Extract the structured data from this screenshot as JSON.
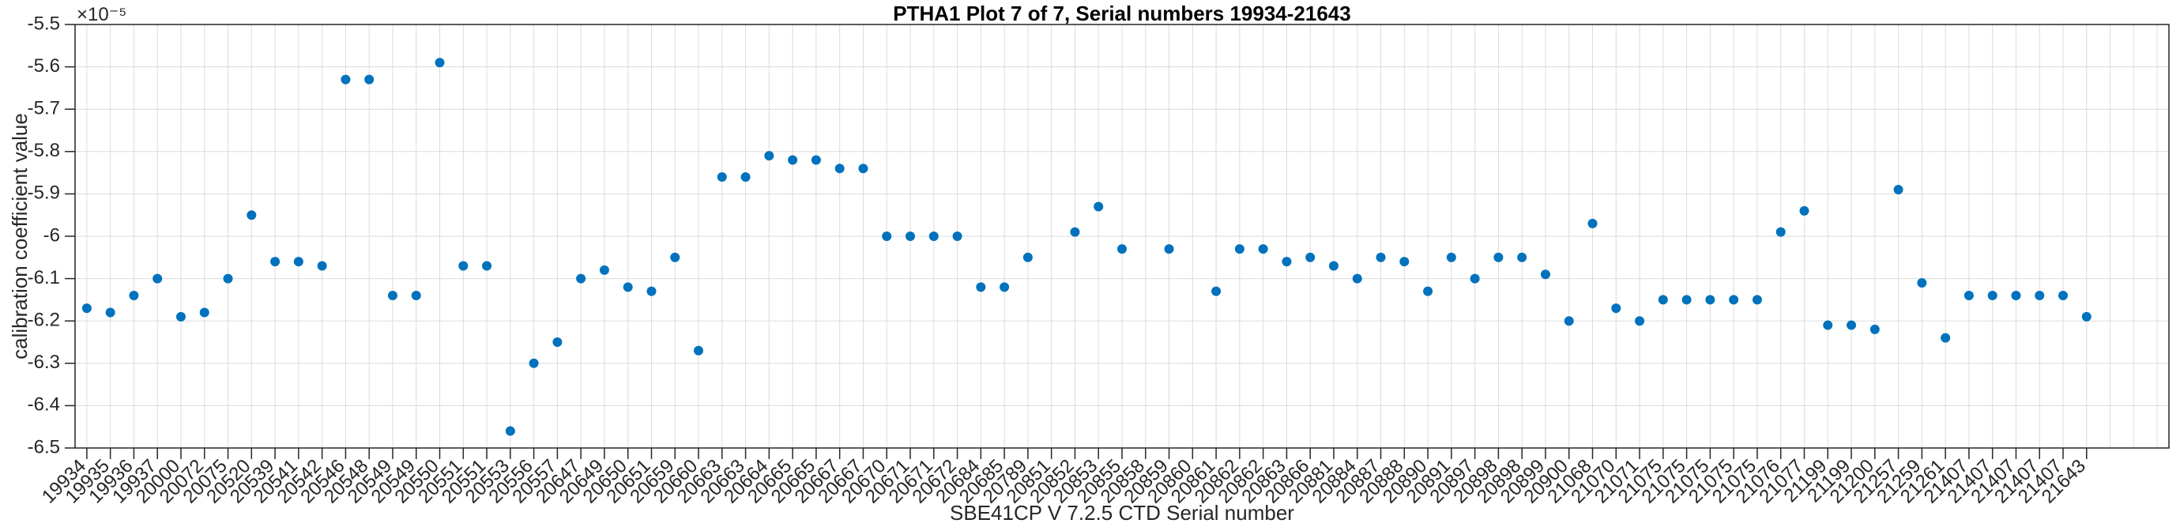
{
  "chart_data": {
    "type": "scatter",
    "title": "PTHA1 Plot 7 of 7, Serial numbers 19934-21643",
    "xlabel": "SBE41CP V 7.2.5 CTD Serial number",
    "ylabel": "calibration coefficient value",
    "y_axis_multiplier": "×10⁻⁵",
    "value_units": "values are in units of 1e-5",
    "ylim": [
      -6.5,
      -5.5
    ],
    "ytick_labels": [
      "-5.5",
      "-5.6",
      "-5.7",
      "-5.8",
      "-5.9",
      "-6",
      "-6.1",
      "-6.2",
      "-6.3",
      "-6.4",
      "-6.5"
    ],
    "ytick_values": [
      -5.5,
      -5.6,
      -5.7,
      -5.8,
      -5.9,
      -6.0,
      -6.1,
      -6.2,
      -6.3,
      -6.4,
      -6.5
    ],
    "grid": true,
    "legend": null,
    "marker_color": "#0072BD",
    "axis_color": "#262626",
    "grid_color": "#dbdbdb",
    "categories": [
      "19934",
      "19935",
      "19936",
      "19937",
      "20000",
      "20072",
      "20075",
      "20520",
      "20539",
      "20541",
      "20542",
      "20546",
      "20548",
      "20549",
      "20549",
      "20550",
      "20551",
      "20551",
      "20553",
      "20556",
      "20557",
      "20647",
      "20649",
      "20650",
      "20651",
      "20659",
      "20660",
      "20663",
      "20663",
      "20664",
      "20665",
      "20665",
      "20667",
      "20667",
      "20670",
      "20671",
      "20671",
      "20672",
      "20684",
      "20685",
      "20789",
      "20851",
      "20852",
      "20853",
      "20855",
      "20858",
      "20859",
      "20860",
      "20861",
      "20862",
      "20862",
      "20863",
      "20866",
      "20881",
      "20884",
      "20887",
      "20888",
      "20890",
      "20891",
      "20897",
      "20898",
      "20898",
      "20899",
      "20900",
      "21068",
      "21070",
      "21071",
      "21075",
      "21075",
      "21075",
      "21075",
      "21075",
      "21076",
      "21077",
      "21199",
      "21199",
      "21200",
      "21257",
      "21259",
      "21261",
      "21407",
      "21407",
      "21407",
      "21407",
      "21407",
      "21643"
    ],
    "values": [
      -6.17,
      -6.18,
      -6.14,
      -6.1,
      -6.19,
      -6.18,
      -6.1,
      -5.95,
      -6.06,
      -6.06,
      -6.07,
      -5.63,
      -5.63,
      -6.14,
      -6.14,
      -5.59,
      -6.07,
      -6.07,
      -6.46,
      -6.3,
      -6.25,
      -6.1,
      -6.08,
      -6.12,
      -6.13,
      -6.05,
      -6.27,
      -5.86,
      -5.86,
      -5.81,
      -5.82,
      -5.82,
      -5.84,
      -5.84,
      -6.0,
      -6.0,
      -6.0,
      -6.0,
      -6.12,
      -6.12,
      -6.05,
      null,
      -5.99,
      -5.93,
      -6.03,
      null,
      -6.03,
      null,
      -6.13,
      -6.03,
      -6.03,
      -6.06,
      -6.05,
      -6.07,
      -6.1,
      -6.05,
      -6.06,
      -6.13,
      -6.05,
      -6.1,
      -6.05,
      -6.05,
      -6.09,
      -6.2,
      -5.97,
      -6.17,
      -6.2,
      -6.15,
      -6.15,
      -6.15,
      -6.15,
      -6.15,
      -5.99,
      -5.94,
      -6.21,
      -6.21,
      -6.22,
      -5.89,
      -6.11,
      -6.24,
      -6.14,
      -6.14,
      -6.14,
      -6.14,
      -6.14,
      -6.19
    ]
  }
}
